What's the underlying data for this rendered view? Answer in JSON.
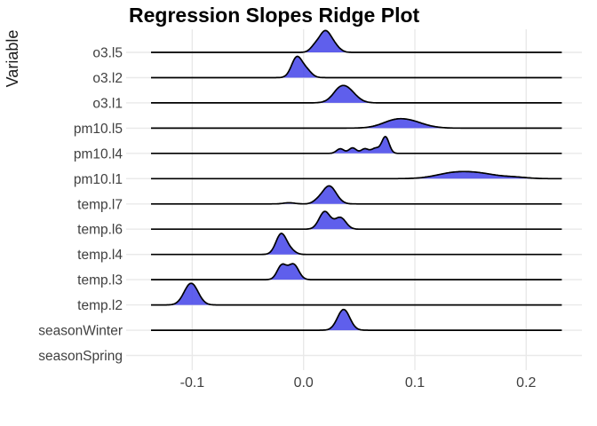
{
  "chart_data": {
    "type": "area",
    "subtype": "ridgeline",
    "title": "Regression Slopes Ridge Plot",
    "xlabel": "",
    "ylabel": "Variable",
    "x_domain": [
      -0.16,
      0.25
    ],
    "x_ticks": [
      {
        "value": -0.1,
        "label": "-0.1"
      },
      {
        "value": 0.0,
        "label": "0.0"
      },
      {
        "value": 0.1,
        "label": "0.1"
      },
      {
        "value": 0.2,
        "label": "0.2"
      }
    ],
    "density_span": [
      -0.137,
      0.232
    ],
    "grid": true,
    "legend": "none",
    "rows": [
      {
        "label": "o3.l5",
        "baseline": true,
        "peak": 0.019,
        "bumps": [
          {
            "c": 0.019,
            "s": 0.005,
            "h": 0.84
          },
          {
            "c": 0.01,
            "s": 0.004,
            "h": 0.24
          },
          {
            "c": 0.027,
            "s": 0.005,
            "h": 0.3
          }
        ]
      },
      {
        "label": "o3.l2",
        "baseline": true,
        "peak": -0.006,
        "bumps": [
          {
            "c": -0.006,
            "s": 0.0048,
            "h": 0.88
          },
          {
            "c": 0.003,
            "s": 0.0045,
            "h": 0.28
          }
        ]
      },
      {
        "label": "o3.l1",
        "baseline": true,
        "peak": 0.037,
        "bumps": [
          {
            "c": 0.037,
            "s": 0.0085,
            "h": 0.7
          },
          {
            "c": 0.031,
            "s": 0.005,
            "h": 0.1
          }
        ]
      },
      {
        "label": "pm10.l5",
        "baseline": true,
        "peak": 0.09,
        "bumps": [
          {
            "c": 0.09,
            "s": 0.015,
            "h": 0.38
          },
          {
            "c": 0.078,
            "s": 0.009,
            "h": 0.06
          }
        ]
      },
      {
        "label": "pm10.l4",
        "baseline": true,
        "peak": 0.073,
        "bumps": [
          {
            "c": 0.033,
            "s": 0.0033,
            "h": 0.2
          },
          {
            "c": 0.044,
            "s": 0.0033,
            "h": 0.24
          },
          {
            "c": 0.055,
            "s": 0.0033,
            "h": 0.2
          },
          {
            "c": 0.0645,
            "s": 0.0035,
            "h": 0.22
          },
          {
            "c": 0.0735,
            "s": 0.0033,
            "h": 0.72
          }
        ]
      },
      {
        "label": "pm10.l1",
        "baseline": true,
        "peak": 0.145,
        "bumps": [
          {
            "c": 0.135,
            "s": 0.016,
            "h": 0.24
          },
          {
            "c": 0.16,
            "s": 0.015,
            "h": 0.18
          },
          {
            "c": 0.19,
            "s": 0.011,
            "h": 0.06
          }
        ]
      },
      {
        "label": "temp.l7",
        "baseline": true,
        "peak": 0.023,
        "bumps": [
          {
            "c": 0.023,
            "s": 0.0063,
            "h": 0.78
          },
          {
            "c": 0.012,
            "s": 0.004,
            "h": 0.08
          },
          {
            "c": -0.013,
            "s": 0.005,
            "h": 0.05
          }
        ]
      },
      {
        "label": "temp.l6",
        "baseline": true,
        "peak": 0.019,
        "bumps": [
          {
            "c": 0.019,
            "s": 0.005,
            "h": 0.76
          },
          {
            "c": 0.033,
            "s": 0.005,
            "h": 0.5
          }
        ]
      },
      {
        "label": "temp.l4",
        "baseline": true,
        "peak": -0.02,
        "bumps": [
          {
            "c": -0.02,
            "s": 0.0048,
            "h": 0.9
          },
          {
            "c": -0.011,
            "s": 0.004,
            "h": 0.14
          }
        ]
      },
      {
        "label": "temp.l3",
        "baseline": true,
        "peak": -0.009,
        "bumps": [
          {
            "c": -0.0195,
            "s": 0.0042,
            "h": 0.62
          },
          {
            "c": -0.009,
            "s": 0.0046,
            "h": 0.66
          }
        ]
      },
      {
        "label": "temp.l2",
        "baseline": true,
        "peak": -0.101,
        "bumps": [
          {
            "c": -0.101,
            "s": 0.0062,
            "h": 0.94
          }
        ]
      },
      {
        "label": "seasonWinter",
        "baseline": true,
        "peak": 0.036,
        "bumps": [
          {
            "c": 0.036,
            "s": 0.0055,
            "h": 0.9
          }
        ]
      },
      {
        "label": "seasonSpring",
        "baseline": false,
        "peak": null,
        "bumps": []
      }
    ]
  },
  "style": {
    "ridge_fill": "#4040e8",
    "ridge_fill_opacity": 0.84,
    "ridge_outline": "#000000",
    "grid_color": "#e9e9e9",
    "axis_text_color": "#3f3f3f",
    "title_color": "#000000",
    "background": "#ffffff"
  }
}
